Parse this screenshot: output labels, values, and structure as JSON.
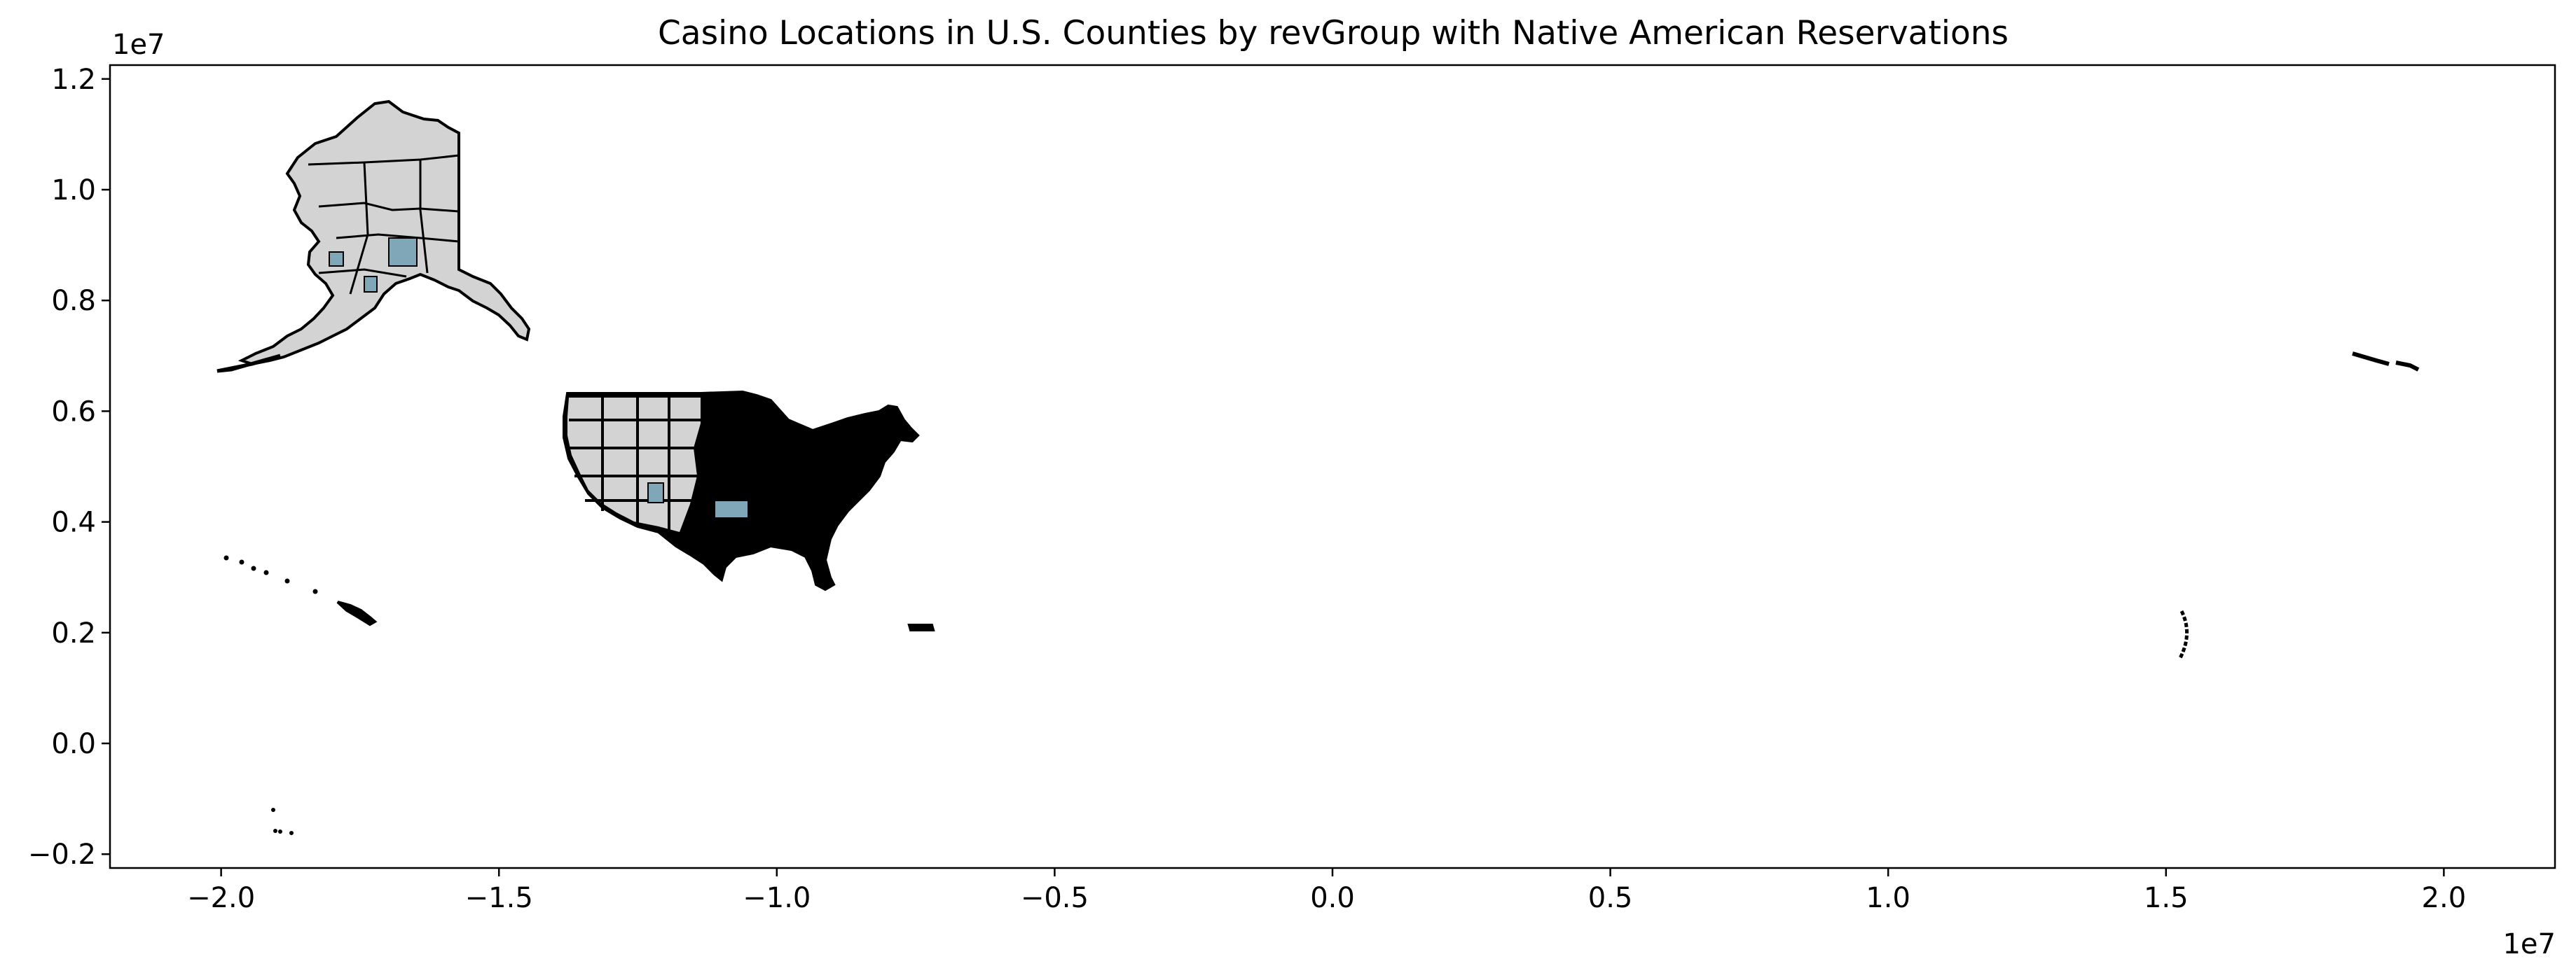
{
  "chart_data": {
    "type": "map",
    "title": "Casino Locations in U.S. Counties by revGroup with Native American Reservations",
    "x_ticks": [
      "−2.0",
      "−1.5",
      "−1.0",
      "−0.5",
      "0.0",
      "0.5",
      "1.0",
      "1.5",
      "2.0"
    ],
    "x_tick_values": [
      -2.0,
      -1.5,
      -1.0,
      -0.5,
      0.0,
      0.5,
      1.0,
      1.5,
      2.0
    ],
    "x_offset_label": "1e7",
    "y_ticks": [
      "1.2",
      "1.0",
      "0.8",
      "0.6",
      "0.4",
      "0.2",
      "0.0",
      "−0.2"
    ],
    "y_tick_values": [
      1.2,
      1.0,
      0.8,
      0.6,
      0.4,
      0.2,
      0.0,
      -0.2
    ],
    "y_offset_label": "1e7",
    "xlim": [
      -2.2,
      2.2
    ],
    "ylim": [
      -0.225,
      1.225
    ],
    "grid": false,
    "legend": "none",
    "colors": {
      "county_fill": "#d3d3d3",
      "county_edge": "#000000",
      "reservation_fill": "#7fa7b8"
    },
    "regions": [
      "Alaska",
      "Contiguous U.S.",
      "Hawaii",
      "Puerto Rico",
      "Guam / Northern Mariana Islands",
      "Aleutian Islands (east of antimeridian)",
      "American Samoa"
    ]
  }
}
